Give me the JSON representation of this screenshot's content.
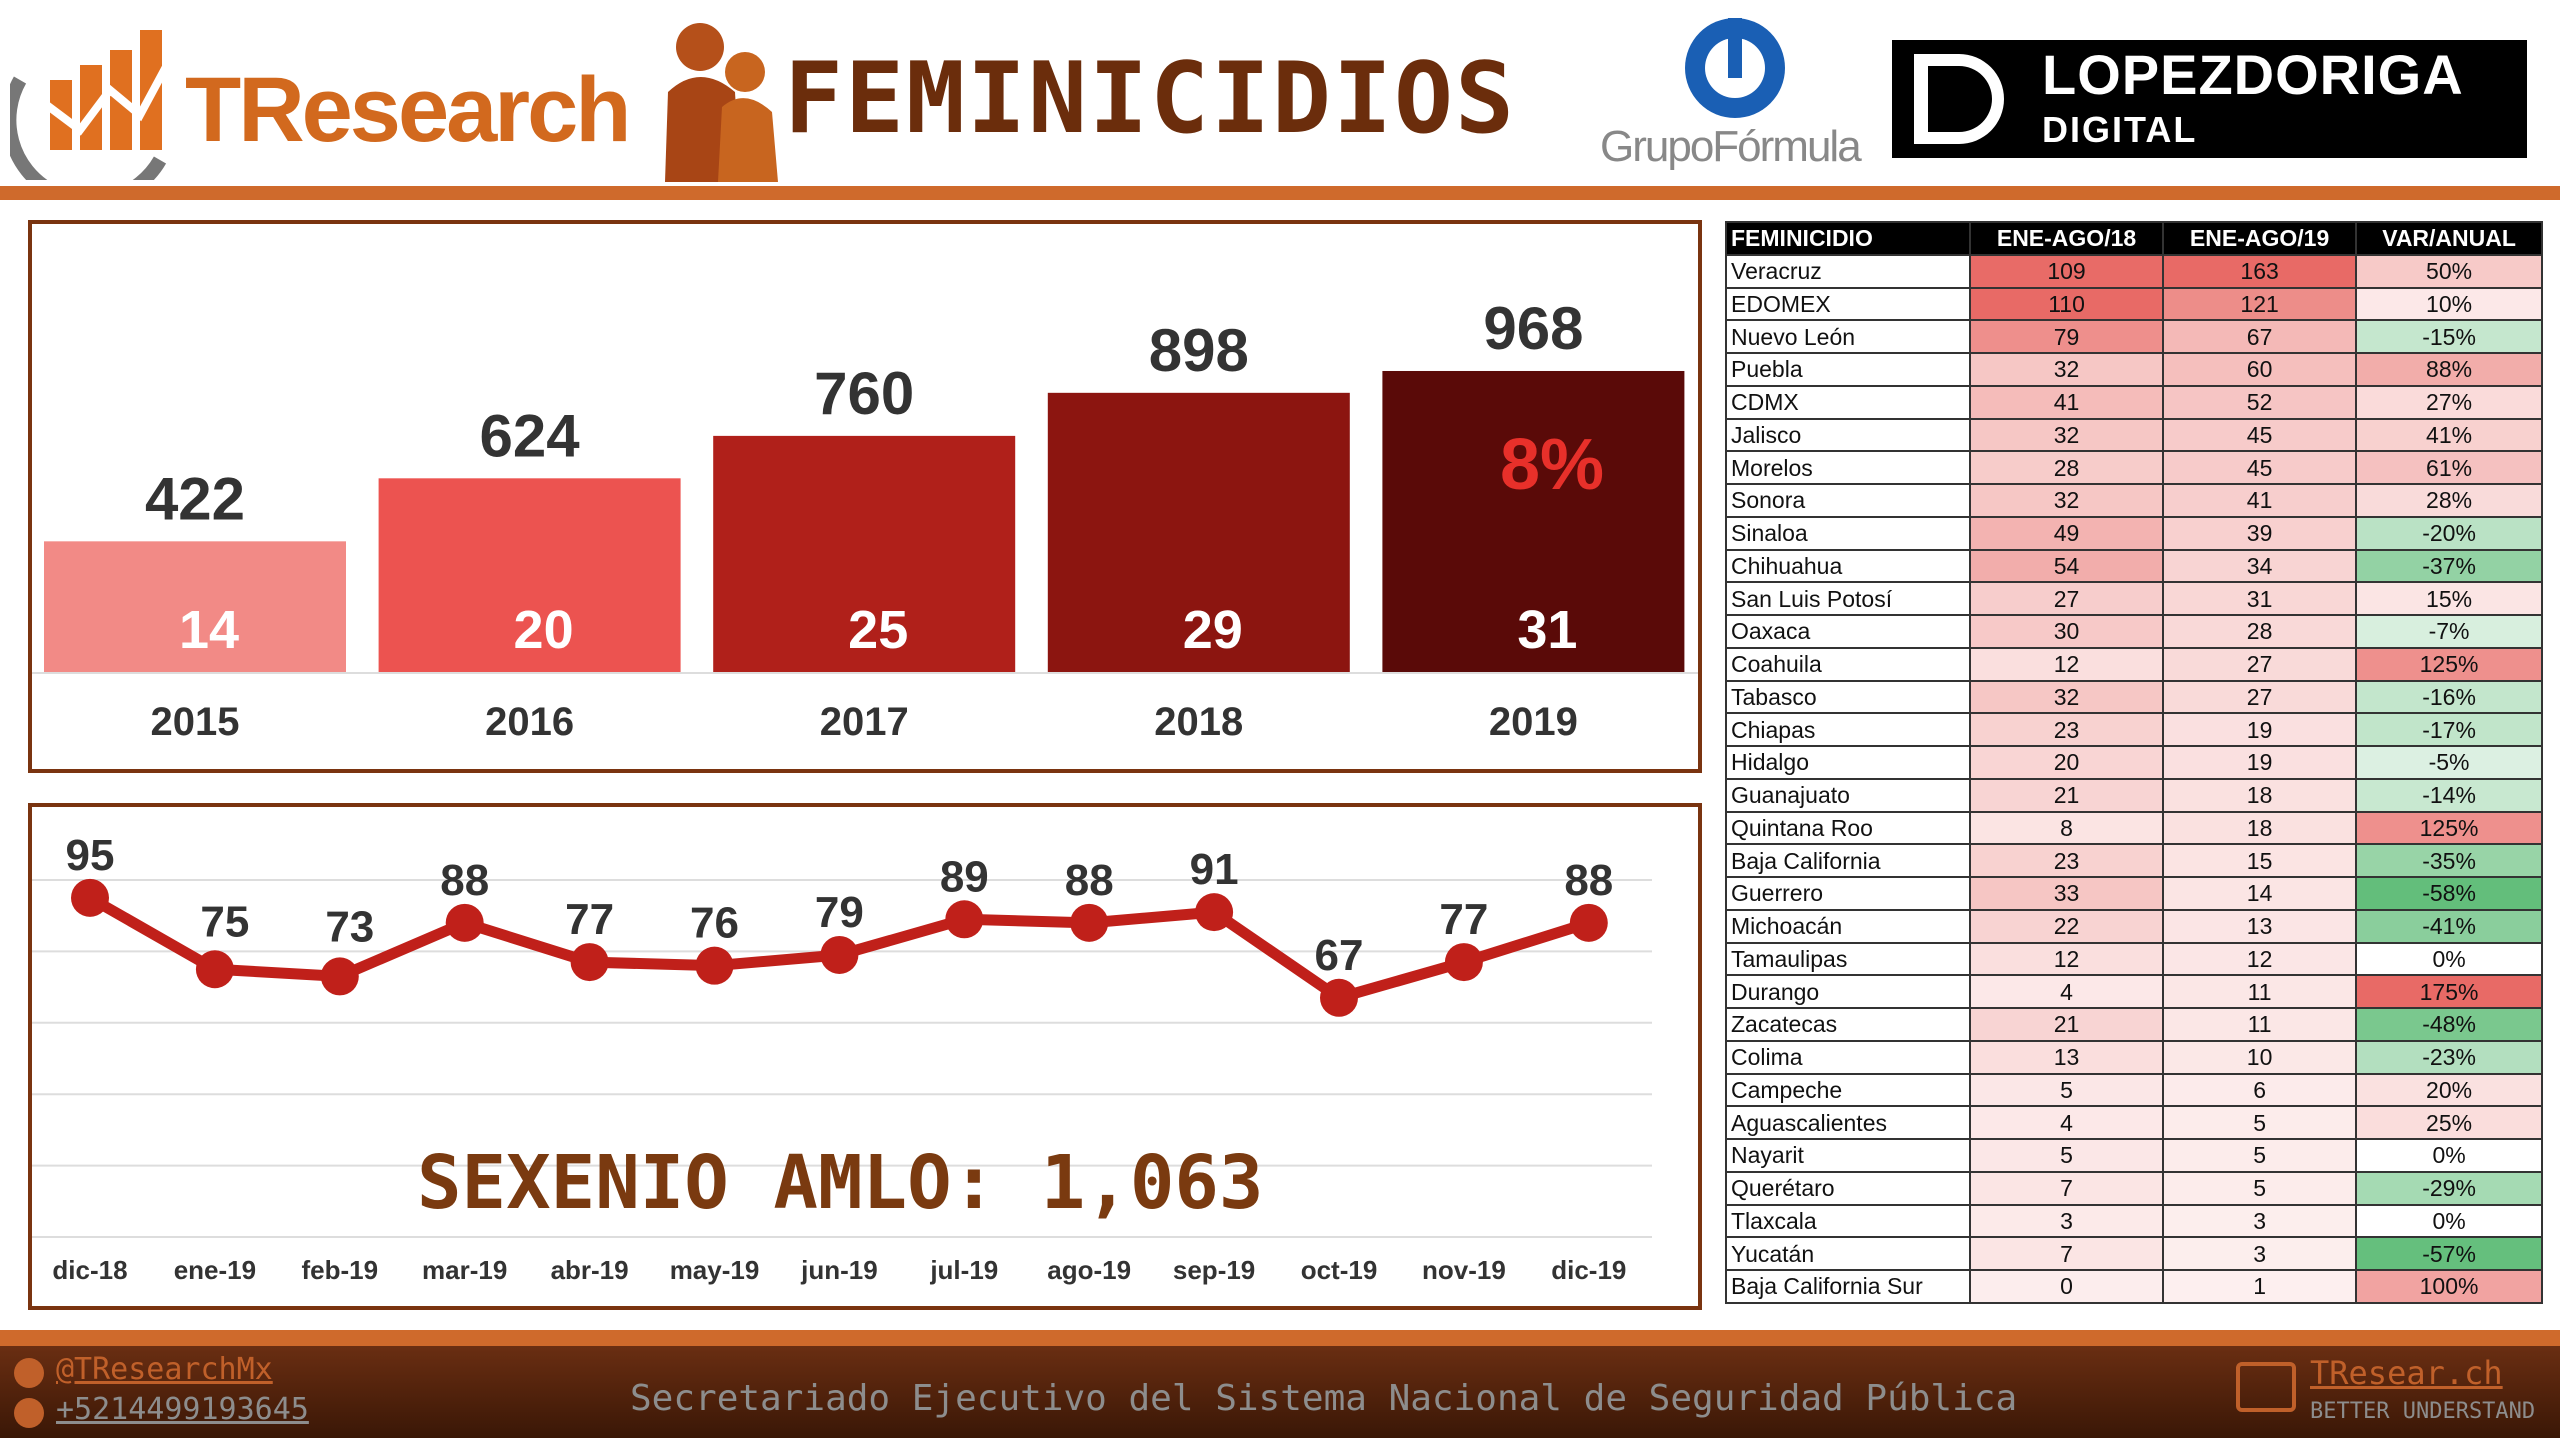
{
  "header": {
    "logo_left": "TResearch",
    "title": "FEMINICIDIOS",
    "logo_mid": "GrupoFórmula",
    "logo_right_1": "LOPEZDORIGA",
    "logo_right_2": "DIGITAL"
  },
  "chart_data": [
    {
      "type": "bar",
      "categories": [
        "2015",
        "2016",
        "2017",
        "2018",
        "2019"
      ],
      "values": [
        422,
        624,
        760,
        898,
        968
      ],
      "inner_labels": [
        "14",
        "20",
        "25",
        "29",
        "31"
      ],
      "annotation": "8%",
      "colors": [
        "#f28a86",
        "#ec5350",
        "#b0201a",
        "#8c1510",
        "#5a0a08"
      ]
    },
    {
      "type": "line",
      "categories": [
        "dic-18",
        "ene-19",
        "feb-19",
        "mar-19",
        "abr-19",
        "may-19",
        "jun-19",
        "jul-19",
        "ago-19",
        "sep-19",
        "oct-19",
        "nov-19",
        "dic-19"
      ],
      "values": [
        95,
        75,
        73,
        88,
        77,
        76,
        79,
        89,
        88,
        91,
        67,
        77,
        88
      ],
      "ylim": [
        0,
        100
      ],
      "grid": true,
      "color": "#c0201a",
      "annotation": "SEXENIO AMLO: 1,063"
    }
  ],
  "table": {
    "headers": [
      "FEMINICIDIO",
      "ENE-AGO/18",
      "ENE-AGO/19",
      "VAR/ANUAL"
    ],
    "rows": [
      [
        "Veracruz",
        109,
        163,
        "50%"
      ],
      [
        "EDOMEX",
        110,
        121,
        "10%"
      ],
      [
        "Nuevo León",
        79,
        67,
        "-15%"
      ],
      [
        "Puebla",
        32,
        60,
        "88%"
      ],
      [
        "CDMX",
        41,
        52,
        "27%"
      ],
      [
        "Jalisco",
        32,
        45,
        "41%"
      ],
      [
        "Morelos",
        28,
        45,
        "61%"
      ],
      [
        "Sonora",
        32,
        41,
        "28%"
      ],
      [
        "Sinaloa",
        49,
        39,
        "-20%"
      ],
      [
        "Chihuahua",
        54,
        34,
        "-37%"
      ],
      [
        "San Luis Potosí",
        27,
        31,
        "15%"
      ],
      [
        "Oaxaca",
        30,
        28,
        "-7%"
      ],
      [
        "Coahuila",
        12,
        27,
        "125%"
      ],
      [
        "Tabasco",
        32,
        27,
        "-16%"
      ],
      [
        "Chiapas",
        23,
        19,
        "-17%"
      ],
      [
        "Hidalgo",
        20,
        19,
        "-5%"
      ],
      [
        "Guanajuato",
        21,
        18,
        "-14%"
      ],
      [
        "Quintana Roo",
        8,
        18,
        "125%"
      ],
      [
        "Baja California",
        23,
        15,
        "-35%"
      ],
      [
        "Guerrero",
        33,
        14,
        "-58%"
      ],
      [
        "Michoacán",
        22,
        13,
        "-41%"
      ],
      [
        "Tamaulipas",
        12,
        12,
        "0%"
      ],
      [
        "Durango",
        4,
        11,
        "175%"
      ],
      [
        "Zacatecas",
        21,
        11,
        "-48%"
      ],
      [
        "Colima",
        13,
        10,
        "-23%"
      ],
      [
        "Campeche",
        5,
        6,
        "20%"
      ],
      [
        "Aguascalientes",
        4,
        5,
        "25%"
      ],
      [
        "Nayarit",
        5,
        5,
        "0%"
      ],
      [
        "Querétaro",
        7,
        5,
        "-29%"
      ],
      [
        "Tlaxcala",
        3,
        3,
        "0%"
      ],
      [
        "Yucatán",
        7,
        3,
        "-57%"
      ],
      [
        "Baja California Sur",
        0,
        1,
        "100%"
      ]
    ]
  },
  "footer": {
    "twitter": "@TResearchMx",
    "phone": "+5214499193645",
    "source": "Secretariado Ejecutivo del Sistema Nacional de Seguridad Pública",
    "web": "TResear.ch",
    "tagline": "BETTER UNDERSTAND"
  }
}
